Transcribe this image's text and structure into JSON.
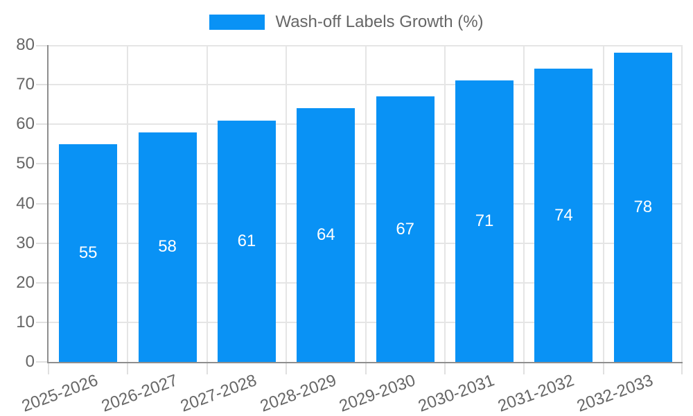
{
  "chart_data": {
    "type": "bar",
    "title": "Wash-off Labels Growth (%)",
    "categories": [
      "2025-2026",
      "2026-2027",
      "2027-2028",
      "2028-2029",
      "2029-2030",
      "2030-2031",
      "2031-2032",
      "2032-2033"
    ],
    "series": [
      {
        "name": "Wash-off Labels Growth (%)",
        "values": [
          55,
          58,
          61,
          64,
          67,
          71,
          74,
          78
        ]
      }
    ],
    "value_labels": [
      "55",
      "58",
      "61",
      "64",
      "67",
      "71",
      "74",
      "78"
    ],
    "xlabel": "",
    "ylabel": "",
    "ylim": [
      0,
      80
    ],
    "ytick_step": 10,
    "ytick_labels": [
      "0",
      "10",
      "20",
      "30",
      "40",
      "50",
      "60",
      "70",
      "80"
    ],
    "grid": true,
    "legend_position": "top"
  },
  "legend": {
    "label": "Wash-off Labels Growth (%)"
  },
  "colors": {
    "bar": "#0992f5",
    "grid": "#e5e5e5",
    "tick": "#e0e0e0",
    "axis": "#8e8e8e",
    "tick_text": "#666666",
    "legend_text": "#666666",
    "value_text": "#ffffff",
    "background": "#ffffff"
  }
}
